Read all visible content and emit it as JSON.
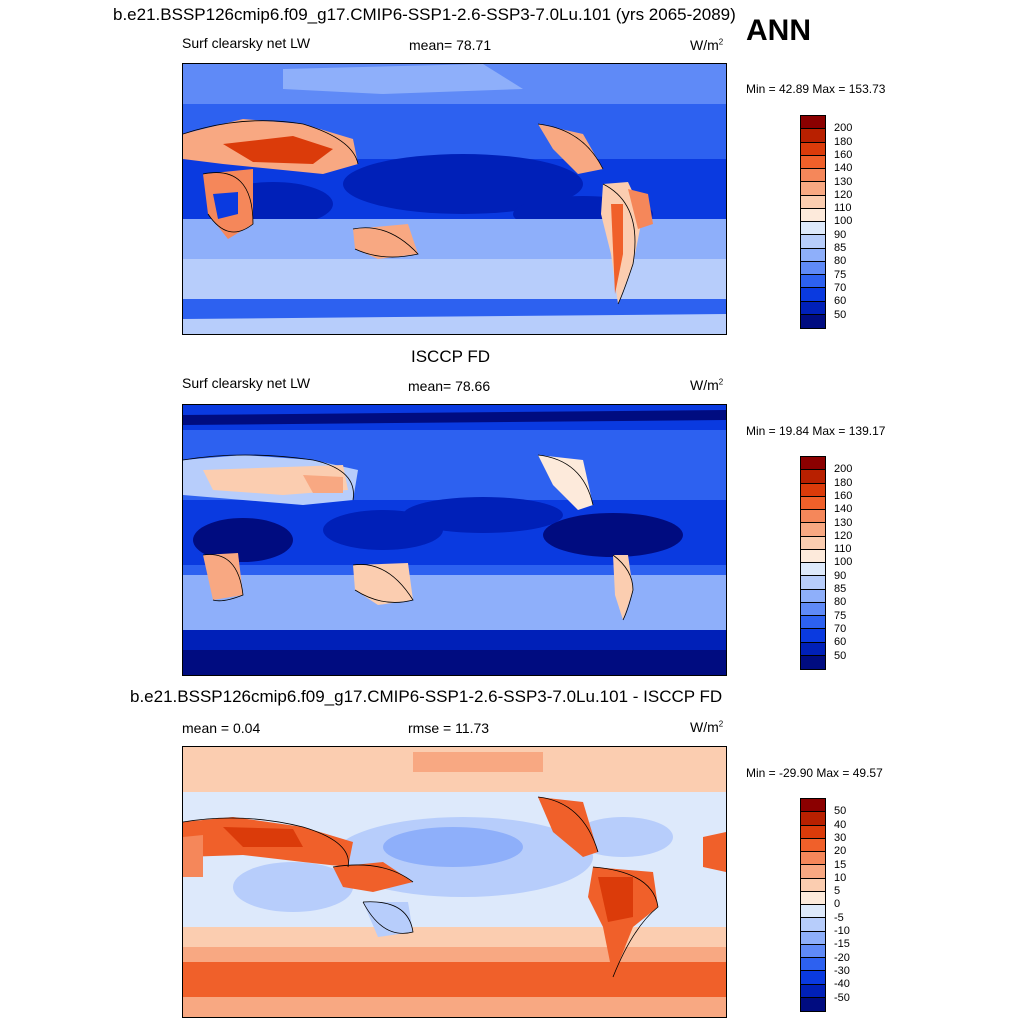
{
  "page_title": "b.e21.BSSP126cmip6.f09_g17.CMIP6-SSP1-2.6-SSP3-7.0Lu.101 (yrs 2065-2089)",
  "season": "ANN",
  "panels": [
    {
      "title": "",
      "var_label": "Surf clearsky net LW",
      "stat_label": "mean=  78.71",
      "units": "W/m",
      "units_sup": "2",
      "minmax": "Min =  42.89 Max = 153.73"
    },
    {
      "title": "ISCCP FD",
      "var_label": "Surf clearsky net LW",
      "stat_label": "mean=  78.66",
      "units": "W/m",
      "units_sup": "2",
      "minmax": "Min =  19.84 Max = 139.17"
    },
    {
      "title": "b.e21.BSSP126cmip6.f09_g17.CMIP6-SSP1-2.6-SSP3-7.0Lu.101 - ISCCP FD",
      "var_label": "mean =   0.04",
      "stat_label": "rmse =  11.73",
      "units": "W/m",
      "units_sup": "2",
      "minmax": "Min = -29.90 Max =  49.57"
    }
  ],
  "colorbar_abs": {
    "labels": [
      "200",
      "180",
      "160",
      "140",
      "130",
      "120",
      "110",
      "100",
      "90",
      "85",
      "80",
      "75",
      "70",
      "60",
      "50"
    ],
    "colors": [
      "#8b0000",
      "#b82000",
      "#db3b0a",
      "#f0602a",
      "#f5875a",
      "#f8a882",
      "#fbcdb0",
      "#fdeadb",
      "#dde9fb",
      "#b7cdfb",
      "#8eaffa",
      "#5f8af7",
      "#2d61f0",
      "#0a3ae0",
      "#0020b8",
      "#000c80"
    ]
  },
  "colorbar_diff": {
    "labels": [
      "50",
      "40",
      "30",
      "20",
      "15",
      "10",
      "5",
      "0",
      "-5",
      "-10",
      "-15",
      "-20",
      "-30",
      "-40",
      "-50"
    ],
    "colors": [
      "#8b0000",
      "#b82000",
      "#db3b0a",
      "#f0602a",
      "#f5875a",
      "#f8a882",
      "#fbcdb0",
      "#fdeadb",
      "#dde9fb",
      "#b7cdfb",
      "#8eaffa",
      "#5f8af7",
      "#2d61f0",
      "#0a3ae0",
      "#0020b8",
      "#000c80"
    ]
  }
}
